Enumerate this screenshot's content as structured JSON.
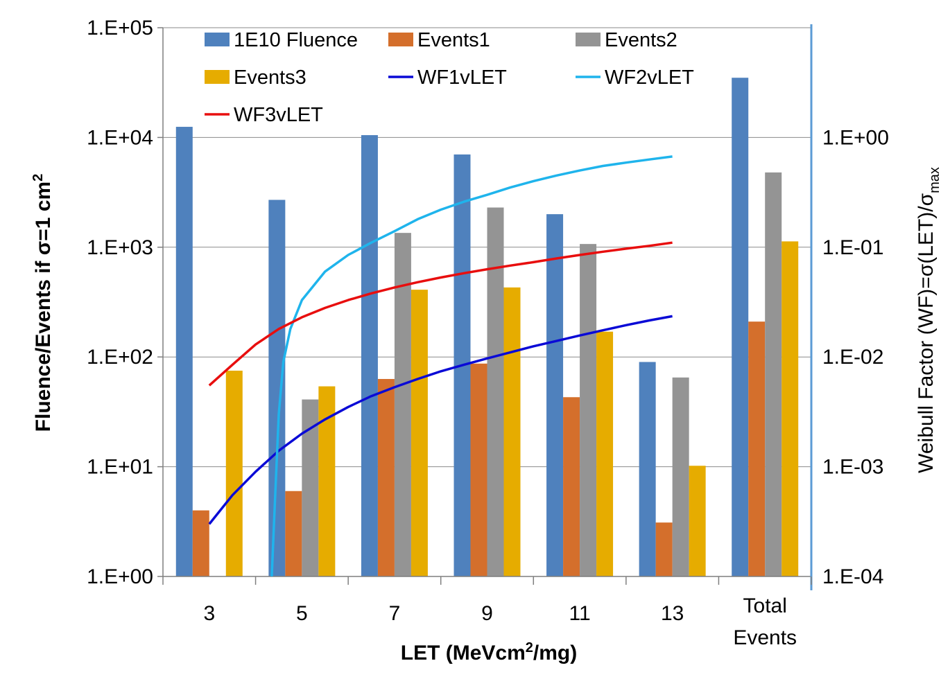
{
  "chart_data": {
    "type": "bar",
    "categories": [
      "3",
      "5",
      "7",
      "9",
      "11",
      "13",
      "Total Events"
    ],
    "category_lines": [
      [
        "3"
      ],
      [
        "5"
      ],
      [
        "7"
      ],
      [
        "9"
      ],
      [
        "11"
      ],
      [
        "13"
      ],
      [
        "Total",
        "Events"
      ]
    ],
    "y_scale": "log",
    "ylim": [
      1,
      100000
    ],
    "y2_scale": "log",
    "y2lim": [
      0.0001,
      10
    ],
    "y_ticks": [
      {
        "value": 1,
        "label": "1.E+00"
      },
      {
        "value": 10,
        "label": "1.E+01"
      },
      {
        "value": 100,
        "label": "1.E+02"
      },
      {
        "value": 1000,
        "label": "1.E+03"
      },
      {
        "value": 10000,
        "label": "1.E+04"
      },
      {
        "value": 100000,
        "label": "1.E+05"
      }
    ],
    "y2_ticks": [
      {
        "value": 0.0001,
        "label": "1.E-04"
      },
      {
        "value": 0.001,
        "label": "1.E-03"
      },
      {
        "value": 0.01,
        "label": "1.E-02"
      },
      {
        "value": 0.1,
        "label": "1.E-01"
      },
      {
        "value": 1,
        "label": "1.E+00"
      }
    ],
    "xlabel": {
      "pre": "LET (MeVcm",
      "sup": "2",
      "post": "/mg)"
    },
    "ylabel": {
      "pre": "Fluence/Events if σ=1 cm",
      "sup": "2"
    },
    "y2label": {
      "pre": "Weibull Factor (WF)=σ(LET)/σ",
      "sub": "max"
    },
    "grid": true,
    "legend_position": "top",
    "series": [
      {
        "name": "1E10 Fluence",
        "color": "#4f81bd",
        "values": [
          12500,
          2700,
          10500,
          7000,
          2000,
          90,
          35000
        ]
      },
      {
        "name": "Events1",
        "color": "#d46f2c",
        "values": [
          4,
          6,
          63,
          87,
          43,
          3.1,
          210
        ]
      },
      {
        "name": "Events2",
        "color": "#949494",
        "values": [
          null,
          41,
          1350,
          2300,
          1070,
          65,
          4800
        ]
      },
      {
        "name": "Events3",
        "color": "#e6ac00",
        "values": [
          75,
          54,
          410,
          430,
          170,
          10.2,
          1130
        ]
      }
    ],
    "lines": [
      {
        "name": "WF1vLET",
        "color": "#0a0ad6",
        "x": [
          3,
          3.5,
          4,
          4.5,
          5,
          5.5,
          6,
          6.5,
          7,
          7.5,
          8,
          8.5,
          9,
          9.5,
          10,
          10.5,
          11,
          11.5,
          12,
          12.5,
          13
        ],
        "y": [
          0.0003,
          0.00055,
          0.0009,
          0.0014,
          0.002,
          0.0027,
          0.0035,
          0.0044,
          0.0053,
          0.0063,
          0.0074,
          0.0085,
          0.0097,
          0.011,
          0.0125,
          0.014,
          0.0157,
          0.0175,
          0.0195,
          0.0215,
          0.0235
        ]
      },
      {
        "name": "WF2vLET",
        "color": "#1fb4ec",
        "x": [
          4.35,
          4.42,
          4.5,
          4.6,
          4.75,
          5,
          5.5,
          6,
          6.5,
          7,
          7.5,
          8,
          8.5,
          9,
          9.5,
          10,
          10.5,
          11,
          11.5,
          12,
          12.5,
          13
        ],
        "y": [
          0.0001,
          0.0005,
          0.003,
          0.009,
          0.018,
          0.033,
          0.06,
          0.085,
          0.11,
          0.14,
          0.18,
          0.22,
          0.26,
          0.3,
          0.35,
          0.4,
          0.45,
          0.5,
          0.55,
          0.59,
          0.63,
          0.67
        ]
      },
      {
        "name": "WF3vLET",
        "color": "#e80e0e",
        "x": [
          3,
          3.5,
          4,
          4.5,
          5,
          5.5,
          6,
          6.5,
          7,
          7.5,
          8,
          8.5,
          9,
          9.5,
          10,
          10.5,
          11,
          11.5,
          12,
          12.5,
          13
        ],
        "y": [
          0.0055,
          0.0085,
          0.013,
          0.018,
          0.023,
          0.028,
          0.033,
          0.038,
          0.043,
          0.048,
          0.053,
          0.058,
          0.063,
          0.068,
          0.073,
          0.079,
          0.085,
          0.091,
          0.097,
          0.103,
          0.11
        ]
      }
    ],
    "legend_order": [
      "1E10 Fluence",
      "Events1",
      "Events2",
      "Events3",
      "WF1vLET",
      "WF2vLET",
      "WF3vLET"
    ]
  }
}
